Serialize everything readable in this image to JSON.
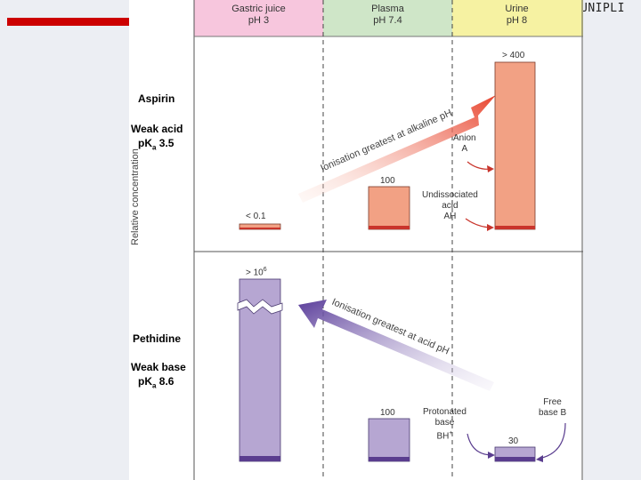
{
  "brand": "UNIPLI",
  "headers": [
    {
      "line1": "Gastric juice",
      "line2": "pH 3",
      "color": "#f7c6dd"
    },
    {
      "line1": "Plasma",
      "line2": "pH 7.4",
      "color": "#cfe6c8"
    },
    {
      "line1": "Urine",
      "line2": "pH 8",
      "color": "#f6f2a2"
    }
  ],
  "y_axis_label": "Relative concentration",
  "aspirin": {
    "name": "Aspirin",
    "type": "Weak acid",
    "pka_label": "pK",
    "pka_sub": "a",
    "pka_value": "3.5",
    "bars": [
      {
        "label": "< 0.1",
        "value": 0.1
      },
      {
        "label": "100",
        "value": 100
      },
      {
        "label": "> 400",
        "value": 400
      }
    ],
    "arrow_text": "Ionisation greatest at alkaline pH",
    "anion_label_1": "Anion",
    "anion_label_2": "A",
    "undissociated_1": "Undissociated",
    "undissociated_2": "acid",
    "undissociated_3": "AH",
    "bar_color": "#f2a184",
    "base_color": "#c9352c"
  },
  "pethidine": {
    "name": "Pethidine",
    "type": "Weak base",
    "pka_label": "pK",
    "pka_sub": "a",
    "pka_value": "8.6",
    "bars": [
      {
        "label": "> 10",
        "sup": "6",
        "value": 1000000
      },
      {
        "label": "100",
        "value": 100
      },
      {
        "label": "30",
        "value": 30
      }
    ],
    "arrow_text": "Ionisation greatest at acid pH",
    "protonated_1": "Protonated",
    "protonated_2": "base",
    "protonated_3": "BH",
    "protonated_sup": "+",
    "free_1": "Free",
    "free_2": "base B",
    "bar_color": "#b6a6d2",
    "base_color": "#5a3d8f"
  }
}
